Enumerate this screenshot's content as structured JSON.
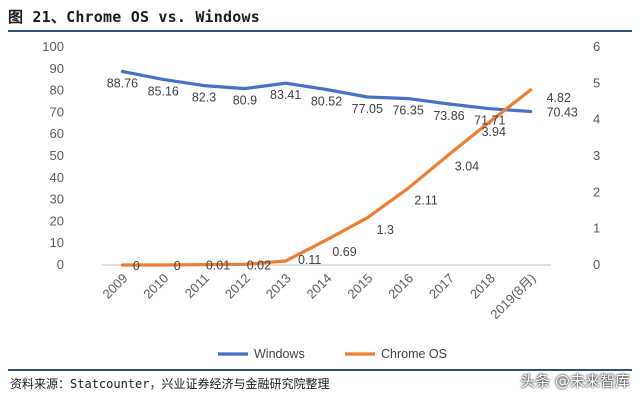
{
  "header": {
    "title": "图 21、Chrome OS vs. Windows"
  },
  "footer": {
    "source": "资料来源：Statcounter，兴业证券经济与金融研究院整理",
    "watermark": "头条 @未来智库"
  },
  "colors": {
    "windows": "#4472c4",
    "chrome": "#ed7d31",
    "rule": "#2f4d84"
  },
  "chart_data": {
    "type": "line",
    "title": "Chrome OS vs. Windows",
    "categories": [
      "2009",
      "2010",
      "2011",
      "2012",
      "2013",
      "2014",
      "2015",
      "2016",
      "2017",
      "2018",
      "2019(8月)"
    ],
    "series": [
      {
        "name": "Windows",
        "axis": "left",
        "values": [
          88.76,
          85.16,
          82.3,
          80.9,
          83.41,
          80.52,
          77.05,
          76.35,
          73.86,
          71.71,
          70.43
        ]
      },
      {
        "name": "Chrome OS",
        "axis": "right",
        "values": [
          0,
          0,
          0.01,
          0.02,
          0.11,
          0.69,
          1.3,
          2.11,
          3.04,
          3.94,
          4.82
        ]
      }
    ],
    "y_left": {
      "min": 0,
      "max": 100,
      "step": 10,
      "ticks": [
        "0",
        "10",
        "20",
        "30",
        "40",
        "50",
        "60",
        "70",
        "80",
        "90",
        "100"
      ]
    },
    "y_right": {
      "min": 0,
      "max": 6,
      "step": 1,
      "ticks": [
        "0",
        "1",
        "2",
        "3",
        "4",
        "5",
        "6"
      ]
    },
    "data_labels": {
      "Windows": [
        "88.76",
        "85.16",
        "82.3",
        "80.9",
        "83.41",
        "80.52",
        "77.05",
        "76.35",
        "73.86",
        "71.71",
        "70.43"
      ],
      "Chrome OS": [
        "0",
        "0",
        "0.01",
        "0.02",
        "0.11",
        "0.69",
        "1.3",
        "2.11",
        "3.04",
        "3.94",
        "4.82"
      ]
    },
    "legend": {
      "position": "bottom",
      "entries": [
        "Windows",
        "Chrome OS"
      ]
    },
    "grid": false
  }
}
